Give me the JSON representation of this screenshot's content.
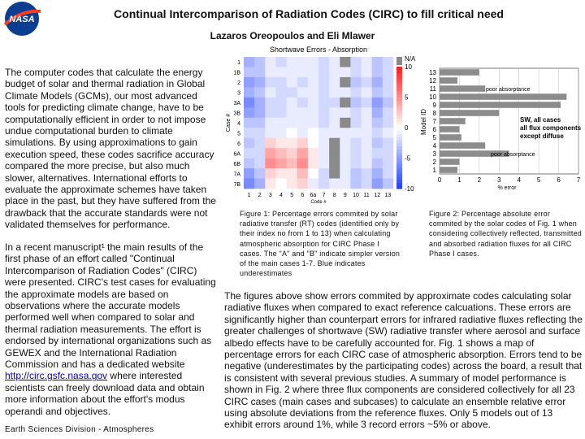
{
  "logo": "NASA",
  "header": {
    "title": "Continual Intercomparison of Radiation Codes (CIRC) to fill critical need",
    "authors": "Lazaros Oreopoulos and Eli Mlawer"
  },
  "left": {
    "paragraph1": "The computer codes that calculate the energy budget of solar and thermal radiation in Global Climate Models (GCMs), our most advanced tools for predicting climate change, have to be computationally efficient in order to not impose undue computational burden to climate simulations. By using approximations to gain execution speed, these codes sacrifice accuracy compared the more precise, but also much slower, alternatives. International efforts to evaluate the approximate schemes have taken place in the past, but they have suffered from the drawback that the accurate standards were not validated themselves for performance.",
    "paragraph2_before": "In a recent manuscript¹ the main results of the first phase of an effort called \"Continual Intercomparison of Radiation Codes\" (CIRC) were presented. CIRC's test cases for evaluating the approximate models are based on observations where the accurate models performed well when compared to solar and thermal radiation measurements. The effort is endorsed by international organizations such as GEWEX and the International Radiation Commission and has a dedicated website ",
    "link": "http://circ.gsfc.nasa.gov",
    "paragraph2_after": " where interested scientists can freely download data and obtain more information about the effort's modus operandi and objectives.",
    "footer": "Earth Sciences Division - Atmospheres"
  },
  "figure1": {
    "title": "Shortwave Errors - Absorption",
    "ylabel": "Case #",
    "xlabel": "Code #",
    "rows": [
      "1",
      "1B",
      "2",
      "3",
      "3A",
      "3B",
      "4",
      "5",
      "6",
      "6A",
      "6B",
      "7A",
      "7B"
    ],
    "columns": [
      "1",
      "2",
      "3",
      "4",
      "5",
      "6",
      "6a",
      "7",
      "8",
      "9",
      "10",
      "11",
      "12",
      "13"
    ],
    "values": [
      [
        -4,
        -3,
        -1,
        -2,
        -1,
        -1,
        -1,
        -2,
        -1,
        null,
        -2,
        -1,
        -3,
        -2
      ],
      [
        -3,
        -3,
        -1,
        -1,
        -1,
        -1,
        -1,
        -2,
        -1,
        -1,
        -2,
        -1,
        -3,
        -2
      ],
      [
        -5,
        -4,
        -2,
        -2,
        -1,
        -2,
        -1,
        -2,
        -1,
        null,
        -3,
        -2,
        -4,
        -2
      ],
      [
        -4,
        -3,
        -1,
        -2,
        -2,
        -1,
        -1,
        -2,
        -1,
        -1,
        -2,
        -1,
        -3,
        -2
      ],
      [
        -6,
        -4,
        -2,
        -2,
        -1,
        -2,
        -1,
        -2,
        -2,
        null,
        -3,
        -2,
        -5,
        -3
      ],
      [
        -5,
        -4,
        -2,
        -2,
        -1,
        -1,
        -1,
        -2,
        -1,
        -1,
        -2,
        -1,
        -4,
        -2
      ],
      [
        -3,
        -3,
        -1,
        -1,
        -1,
        -1,
        -1,
        -2,
        -1,
        null,
        -2,
        -1,
        -3,
        -2
      ],
      [
        -2,
        -2,
        -1,
        -1,
        0,
        -1,
        0,
        -1,
        -1,
        -1,
        -1,
        -1,
        -2,
        -1
      ],
      [
        -3,
        -2,
        2,
        1,
        1,
        2,
        0,
        -1,
        null,
        -1,
        -2,
        -1,
        -3,
        -2
      ],
      [
        -2,
        -2,
        4,
        3,
        2,
        4,
        1,
        -1,
        null,
        -1,
        -2,
        -1,
        -2,
        -2
      ],
      [
        -3,
        -2,
        5,
        4,
        3,
        5,
        1,
        -1,
        null,
        -1,
        -2,
        -1,
        -3,
        -2
      ],
      [
        -5,
        -3,
        2,
        1,
        1,
        3,
        0,
        -2,
        null,
        -1,
        -3,
        -2,
        -4,
        -2
      ],
      [
        -6,
        -4,
        1,
        0,
        1,
        2,
        -1,
        -2,
        -1,
        -1,
        -3,
        -2,
        -5,
        -3
      ]
    ],
    "clim": [
      -10,
      10
    ],
    "colorbar_ticks": [
      10,
      5,
      0,
      -5,
      -10
    ],
    "na_label": "N/A",
    "caption": "Figure 1:  Percentage errors commited by solar radiative transfer (RT) codes (identified only by their index no from 1 to 13) when calculating atmospheric absorption for CIRC Phase I cases. The \"A\" and \"B\" indicate simpler version of the main cases 1-7. Blue indicates underestimates"
  },
  "figure2": {
    "type": "bar",
    "ylabel": "Model ID",
    "xlabel": "% error",
    "categories": [
      "13",
      "12",
      "11",
      "10",
      "9",
      "8",
      "7",
      "6",
      "5",
      "4",
      "3",
      "2",
      "1"
    ],
    "values": [
      2.0,
      0.9,
      2.3,
      6.4,
      6.1,
      3.0,
      1.3,
      1.0,
      1.1,
      2.3,
      3.5,
      1.0,
      0.9
    ],
    "color": "#8c8c8c",
    "xlim": [
      0,
      7
    ],
    "xticks": [
      0,
      1,
      2,
      3,
      4,
      5,
      6,
      7
    ],
    "annotations": [
      "poor absorptance",
      "SW, all cases",
      "all flux components",
      "except diffuse",
      "poor absorptance"
    ],
    "caption": "Figure 2:  Percentage absolute error commited by the solar codes of Fig. 1 when considering collectively reflected, transmitted and absorbed radiation fluxes for all CIRC Phase I cases."
  },
  "bottom": "The figures above show errors commited by approximate codes calculating solar radiative fluxes when compared to exact reference calcuations. These errors are significantly higher than counterpart errors for infrared radiative fluxes reflecting the greater challenges of shortwave (SW) radiative transfer where aerosol and surface albedo effects have to be carefully accounted for. Fig. 1 shows a map of percentage errors for each CIRC case of atmospheric absorption. Errors tend to be negative (underestimates by the participating codes) across the board, a result that is consistent with several previous studies. A summary of model performance is shown in Fig. 2 where three flux components are considered collectively for all 23 CIRC cases (main cases and subcases) to calculate an ensemble relative error using absolute deviations from the reference fluxes. Only 5 models out of 13 exhibit errors around 1%, while 3 record errors ~5% or above."
}
